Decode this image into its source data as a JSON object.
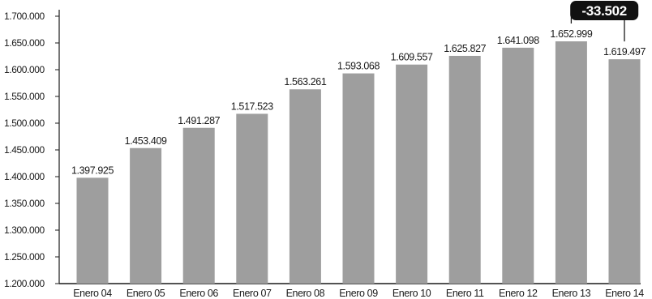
{
  "chart_data": {
    "type": "bar",
    "categories": [
      "Enero 04",
      "Enero 05",
      "Enero 06",
      "Enero 07",
      "Enero 08",
      "Enero 09",
      "Enero 10",
      "Enero 11",
      "Enero 12",
      "Enero 13",
      "Enero 14"
    ],
    "values": [
      1397925,
      1453409,
      1491287,
      1517523,
      1563261,
      1593068,
      1609557,
      1625827,
      1641098,
      1652999,
      1619497
    ],
    "value_labels": [
      "1.397.925",
      "1.453.409",
      "1.491.287",
      "1.517.523",
      "1.563.261",
      "1.593.068",
      "1.609.557",
      "1.625.827",
      "1.641.098",
      "1.652.999",
      "1.619.497"
    ],
    "y_ticks": [
      1200000,
      1250000,
      1300000,
      1350000,
      1400000,
      1450000,
      1500000,
      1550000,
      1600000,
      1650000,
      1700000
    ],
    "y_tick_labels": [
      "1.200.000",
      "1.250.000",
      "1.300.000",
      "1.350.000",
      "1.400.000",
      "1.450.000",
      "1.500.000",
      "1.550.000",
      "1.600.000",
      "1.650.000",
      "1.700.000"
    ],
    "ylim": [
      1200000,
      1700000
    ],
    "title": "",
    "xlabel": "",
    "ylabel": "",
    "grid": false,
    "bar_color": "#9e9e9e",
    "annotation": {
      "text": "-33.502",
      "from_category": "Enero 13",
      "to_category": "Enero 14",
      "badge_color": "#111111",
      "text_color": "#ffffff"
    }
  }
}
